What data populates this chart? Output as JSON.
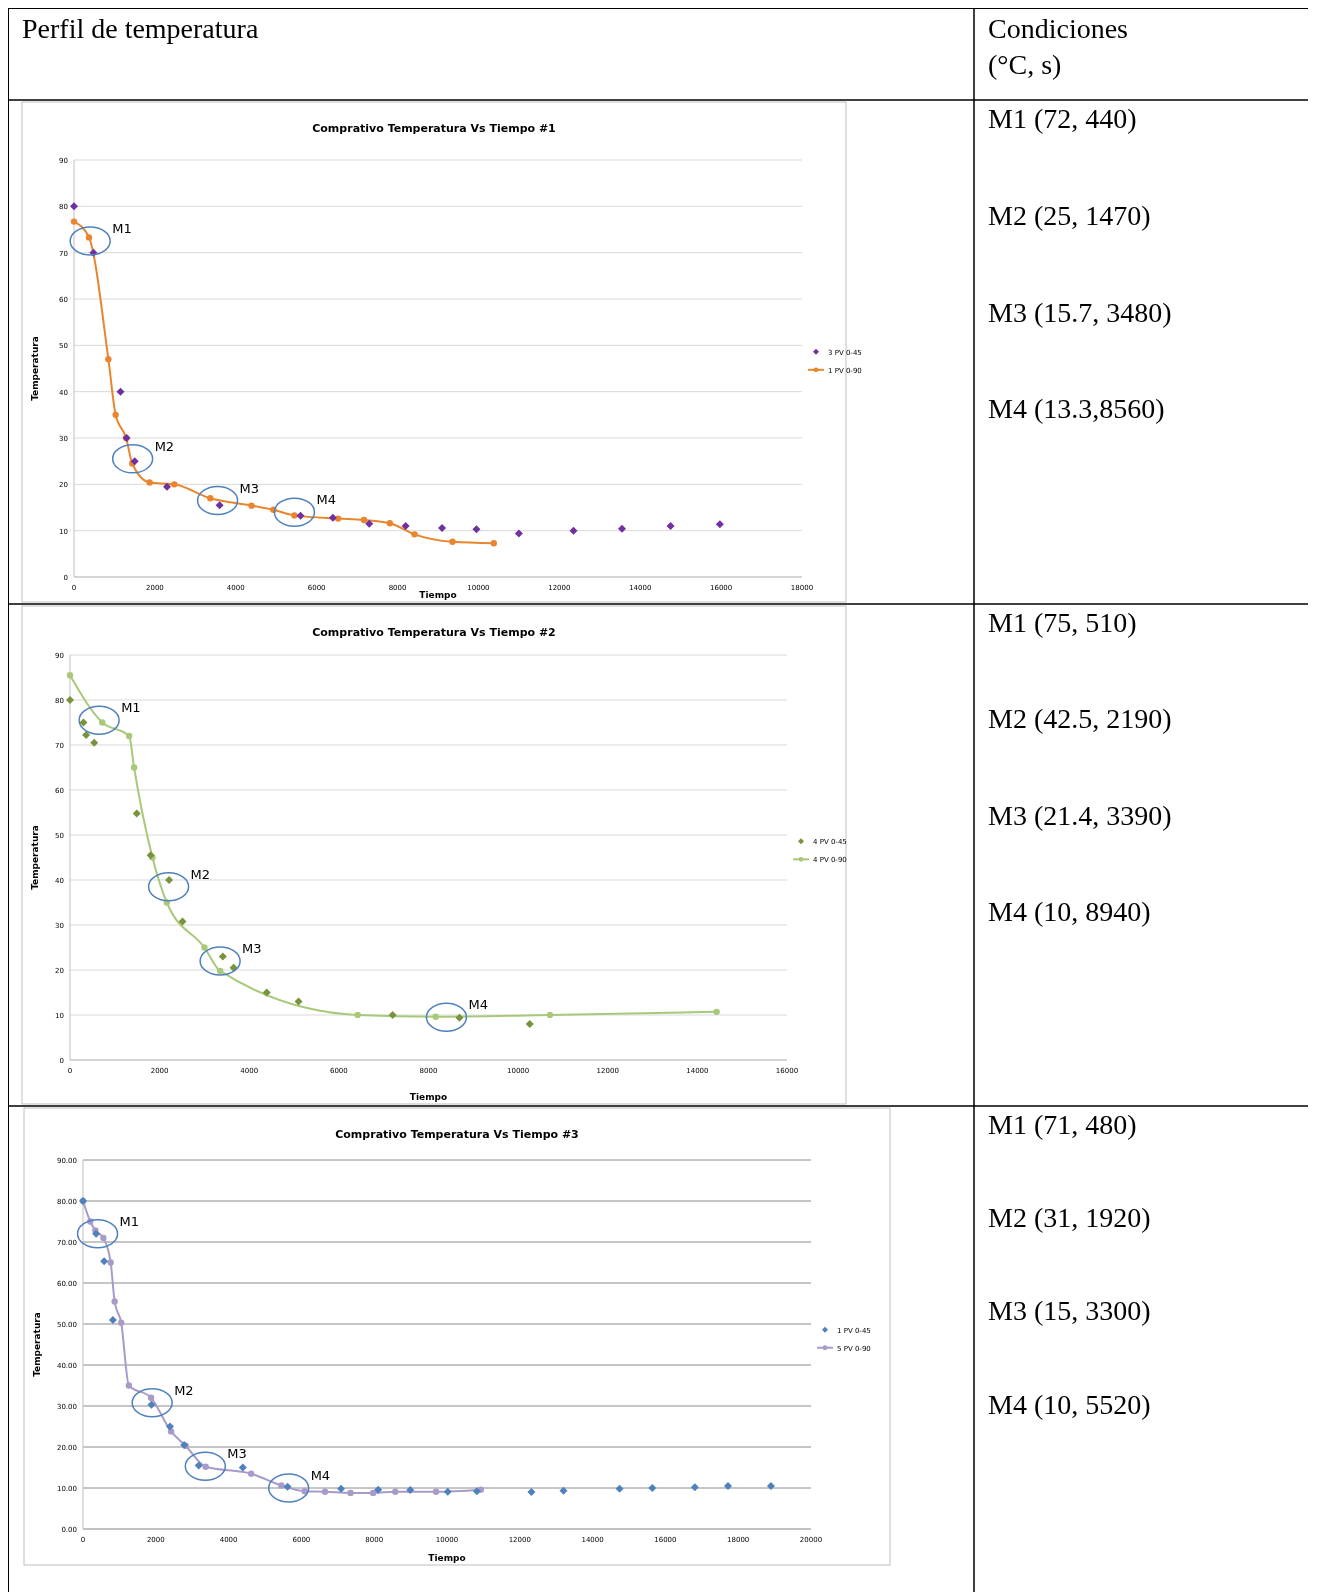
{
  "chart_data": [
    {
      "type": "scatter",
      "title": "Comprativo Temperatura Vs Tiempo #1",
      "xlabel": "Tiempo",
      "ylabel": "Temperatura",
      "xlim": [
        0,
        18000
      ],
      "xticks": [
        0,
        2000,
        4000,
        6000,
        8000,
        10000,
        12000,
        14000,
        16000,
        18000
      ],
      "ylim": [
        0,
        90
      ],
      "yticks": [
        0,
        10,
        20,
        30,
        40,
        50,
        60,
        70,
        80,
        90
      ],
      "grid": "y",
      "legend": "right",
      "series": [
        {
          "name": "3 PV 0-45",
          "type": "scatter",
          "marker": "diamond",
          "color": "#7030a0",
          "x": [
            0,
            480,
            1150,
            1300,
            1500,
            2300,
            3600,
            5600,
            6400,
            7300,
            8200,
            9100,
            9950,
            11000,
            12350,
            13550,
            14750,
            15970
          ],
          "values": [
            80,
            70,
            40,
            30,
            25,
            19.5,
            15.5,
            13.2,
            12.8,
            11.5,
            11,
            10.6,
            10.3,
            9.4,
            10,
            10.4,
            11,
            11.4
          ]
        },
        {
          "name": "1 PV 0-90",
          "type": "line",
          "marker": "circle",
          "color": "#e9852f",
          "x": [
            0,
            370,
            850,
            1030,
            1290,
            1440,
            1870,
            2480,
            3370,
            4390,
            4930,
            5450,
            6530,
            7170,
            7810,
            8420,
            9360,
            10380
          ],
          "values": [
            76.7,
            73.3,
            47,
            35,
            30,
            24.5,
            20.4,
            20,
            17,
            15.4,
            14.5,
            13.3,
            12.6,
            12.3,
            11.6,
            9.2,
            7.6,
            7.3
          ]
        }
      ],
      "annotations": [
        "Perfil de temperatura",
        "Condiciones (°C, s)",
        "M1 (72, 440)",
        "M2 (25, 1470)",
        "M3 (15.7, 3480)",
        "M4 (13.3,8560)",
        {
          "text": "M1",
          "x": 400,
          "y": 72.5
        },
        {
          "text": "M2",
          "x": 1450,
          "y": 25.5
        },
        {
          "text": "M3",
          "x": 3550,
          "y": 16.5
        },
        {
          "text": "M4",
          "x": 5450,
          "y": 14
        }
      ]
    },
    {
      "type": "scatter",
      "title": "Comprativo Temperatura Vs Tiempo #2",
      "xlabel": "Tiempo",
      "ylabel": "Temperatura",
      "xlim": [
        0,
        16000
      ],
      "xticks": [
        0,
        2000,
        4000,
        6000,
        8000,
        10000,
        12000,
        14000,
        16000
      ],
      "ylim": [
        0,
        90
      ],
      "yticks": [
        0,
        10,
        20,
        30,
        40,
        50,
        60,
        70,
        80,
        90
      ],
      "grid": "y",
      "legend": "right",
      "series": [
        {
          "name": "4 PV 0-45",
          "type": "scatter",
          "marker": "diamond",
          "color": "#77933c",
          "x": [
            0,
            300,
            360,
            540,
            1490,
            1800,
            2210,
            2510,
            3410,
            3650,
            4390,
            5100,
            7200,
            8690,
            10260
          ],
          "values": [
            80,
            75,
            72.2,
            70.5,
            54.8,
            45.5,
            40,
            30.8,
            23,
            20.5,
            15,
            13,
            10,
            9.4,
            8
          ]
        },
        {
          "name": "4 PV 0-90",
          "type": "line",
          "marker": "circle",
          "color": "#a9c97a",
          "x": [
            0,
            720,
            1320,
            1430,
            1840,
            2160,
            3000,
            3350,
            6420,
            8160,
            10710,
            14430
          ],
          "values": [
            85.5,
            75,
            72,
            65,
            45,
            35,
            25,
            19.8,
            10,
            9.6,
            10,
            10.7
          ]
        }
      ],
      "annotations": [
        "M1 (75, 510)",
        "M2 (42.5, 2190)",
        "M3 (21.4, 3390)",
        "M4 (10, 8940)",
        {
          "text": "M1",
          "x": 650,
          "y": 75.5
        },
        {
          "text": "M2",
          "x": 2200,
          "y": 38.5
        },
        {
          "text": "M3",
          "x": 3350,
          "y": 22
        },
        {
          "text": "M4",
          "x": 8400,
          "y": 9.5
        }
      ]
    },
    {
      "type": "scatter",
      "title": "Comprativo Temperatura Vs Tiempo #3",
      "xlabel": "Tiempo",
      "ylabel": "Temperatura",
      "xlim": [
        0,
        20000
      ],
      "xticks": [
        0,
        2000,
        4000,
        6000,
        8000,
        10000,
        12000,
        14000,
        16000,
        18000,
        20000
      ],
      "ylim": [
        0,
        90
      ],
      "yticks": [
        {
          "value": 0,
          "label": "0.00"
        },
        {
          "value": 10,
          "label": "10.00"
        },
        {
          "value": 20,
          "label": "20.00"
        },
        {
          "value": 30,
          "label": "30.00"
        },
        {
          "value": 40,
          "label": "40.00"
        },
        {
          "value": 50,
          "label": "50.00"
        },
        {
          "value": 60,
          "label": "60.00"
        },
        {
          "value": 70,
          "label": "70.00"
        },
        {
          "value": 80,
          "label": "80.00"
        },
        {
          "value": 90,
          "label": "90.00"
        }
      ],
      "grid": "y",
      "legend": "right",
      "series": [
        {
          "name": "1 PV 0-45",
          "type": "scatter",
          "marker": "diamond",
          "color": "#4f81bd",
          "x": [
            0,
            360,
            580,
            820,
            1880,
            2390,
            2780,
            3180,
            4390,
            5620,
            7090,
            8110,
            8990,
            10020,
            10820,
            12320,
            13200,
            14740,
            15640,
            16810,
            17720,
            18900
          ],
          "values": [
            80,
            72,
            65.3,
            51,
            30.3,
            25,
            20.5,
            15.5,
            15,
            10.3,
            9.8,
            9.6,
            9.5,
            9.1,
            9.2,
            9,
            9.3,
            9.8,
            10,
            10.2,
            10.5,
            10.5
          ]
        },
        {
          "name": "5 PV 0-90",
          "type": "line",
          "marker": "circle",
          "color": "#a99bc9",
          "x": [
            0,
            200,
            340,
            560,
            760,
            870,
            1050,
            1260,
            1870,
            2420,
            2820,
            3370,
            4620,
            5450,
            6090,
            6650,
            7350,
            7970,
            8580,
            9700,
            10930
          ],
          "values": [
            80,
            75,
            72.8,
            71,
            65,
            55.5,
            50.3,
            35,
            32,
            23.8,
            20.3,
            15.2,
            13.5,
            10.6,
            9.2,
            9.1,
            8.8,
            8.8,
            9.1,
            9.1,
            9.6
          ]
        }
      ],
      "annotations": [
        "M1 (71, 480)",
        "M2 (31, 1920)",
        "M3 (15, 3300)",
        "M4 (10, 5520)",
        {
          "text": "M1",
          "x": 400,
          "y": 72
        },
        {
          "text": "M2",
          "x": 1900,
          "y": 30.8
        },
        {
          "text": "M3",
          "x": 3360,
          "y": 15.3
        },
        {
          "text": "M4",
          "x": 5650,
          "y": 10
        }
      ]
    }
  ]
}
